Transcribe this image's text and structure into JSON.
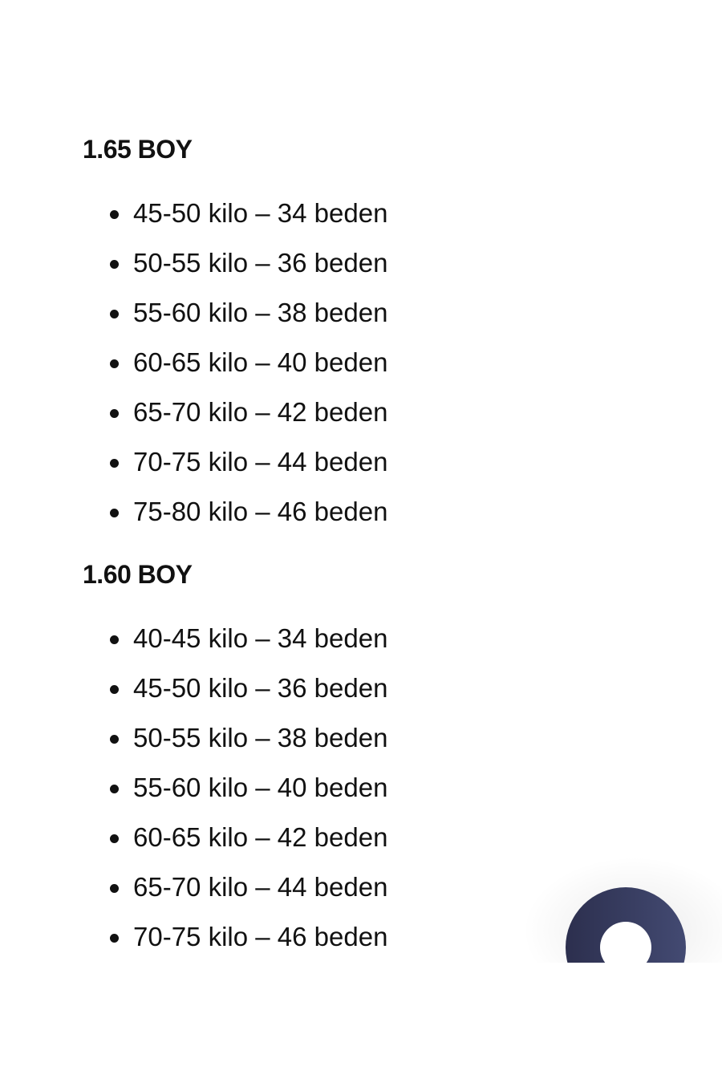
{
  "sections": [
    {
      "heading": "1.65 BOY",
      "items": [
        "45-50 kilo – 34 beden",
        "50-55 kilo – 36 beden",
        "55-60 kilo – 38 beden",
        "60-65 kilo – 40 beden",
        "65-70 kilo – 42 beden",
        "70-75 kilo – 44 beden",
        "75-80 kilo – 46 beden"
      ]
    },
    {
      "heading": "1.60 BOY",
      "items": [
        "40-45 kilo – 34 beden",
        "45-50 kilo – 36 beden",
        "50-55 kilo – 38 beden",
        "55-60 kilo – 40 beden",
        "60-65 kilo – 42 beden",
        "65-70 kilo – 44 beden",
        "70-75 kilo – 46 beden"
      ]
    }
  ],
  "fab": {
    "icon": "ring-icon",
    "color": "#363a5e"
  }
}
